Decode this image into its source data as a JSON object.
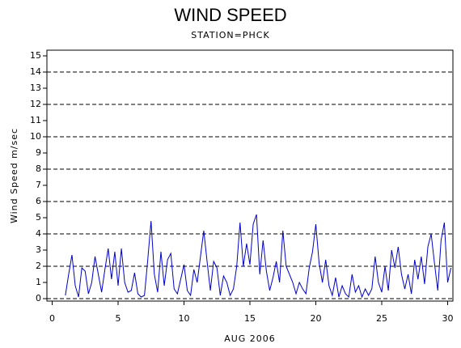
{
  "chart_data": {
    "type": "line",
    "title": "WIND SPEED",
    "subtitle": "STATION=PHCK",
    "x_label": "AUG 2006",
    "y_label": "Wind Speed m/sec",
    "xlim": [
      -0.4,
      30.4
    ],
    "xticks": [
      0,
      5,
      10,
      15,
      20,
      25,
      30
    ],
    "ylim": [
      -0.15,
      15.35
    ],
    "yticks": [
      0,
      1,
      2,
      3,
      4,
      5,
      6,
      7,
      8,
      9,
      10,
      11,
      12,
      13,
      14,
      15
    ],
    "grid_lines": [
      0,
      2,
      4,
      6,
      8,
      10,
      12,
      14
    ],
    "x": [
      1,
      1.25,
      1.5,
      1.75,
      2,
      2.25,
      2.5,
      2.75,
      3,
      3.25,
      3.5,
      3.75,
      4,
      4.25,
      4.5,
      4.75,
      5,
      5.25,
      5.5,
      5.75,
      6,
      6.25,
      6.5,
      6.75,
      7,
      7.25,
      7.5,
      7.75,
      8,
      8.25,
      8.5,
      8.75,
      9,
      9.25,
      9.5,
      9.75,
      10,
      10.25,
      10.5,
      10.75,
      11,
      11.25,
      11.5,
      11.75,
      12,
      12.25,
      12.5,
      12.75,
      13,
      13.25,
      13.5,
      13.75,
      14,
      14.25,
      14.5,
      14.75,
      15,
      15.25,
      15.5,
      15.75,
      16,
      16.25,
      16.5,
      16.75,
      17,
      17.25,
      17.5,
      17.75,
      18,
      18.25,
      18.5,
      18.75,
      19,
      19.25,
      19.5,
      19.75,
      20,
      20.25,
      20.5,
      20.75,
      21,
      21.25,
      21.5,
      21.75,
      22,
      22.25,
      22.5,
      22.75,
      23,
      23.25,
      23.5,
      23.75,
      24,
      24.25,
      24.5,
      24.75,
      25,
      25.25,
      25.5,
      25.75,
      26,
      26.25,
      26.5,
      26.75,
      27,
      27.25,
      27.5,
      27.75,
      28,
      28.25,
      28.5,
      28.75,
      29,
      29.25,
      29.5,
      29.75,
      30,
      30.25
    ],
    "series": [
      {
        "name": "Wind Speed",
        "color": "#0000cc",
        "values": [
          0.2,
          1.5,
          2.7,
          0.8,
          0.1,
          1.9,
          1.7,
          0.3,
          1.0,
          2.6,
          1.5,
          0.4,
          1.8,
          3.1,
          1.2,
          2.9,
          0.8,
          3.1,
          1.0,
          0.4,
          0.5,
          1.6,
          0.3,
          0.1,
          0.2,
          2.4,
          4.8,
          1.5,
          0.4,
          2.9,
          0.8,
          2.4,
          2.8,
          0.6,
          0.3,
          1.2,
          2.1,
          0.5,
          0.2,
          1.8,
          1.0,
          2.6,
          4.2,
          2.3,
          0.5,
          2.3,
          1.9,
          0.2,
          1.4,
          1.0,
          0.2,
          0.6,
          2.0,
          4.7,
          2.0,
          3.4,
          2.1,
          4.6,
          5.2,
          1.5,
          3.6,
          1.7,
          0.5,
          1.3,
          2.3,
          1.0,
          4.2,
          2.0,
          1.5,
          1.0,
          0.3,
          1.0,
          0.6,
          0.3,
          1.9,
          2.9,
          4.6,
          2.2,
          1.0,
          2.4,
          0.8,
          0.2,
          1.3,
          0.1,
          0.8,
          0.3,
          0.1,
          1.5,
          0.4,
          0.8,
          0.1,
          0.6,
          0.2,
          0.6,
          2.6,
          1.0,
          0.4,
          2.0,
          0.5,
          3.0,
          1.9,
          3.2,
          1.5,
          0.6,
          1.5,
          0.3,
          2.4,
          1.2,
          2.6,
          0.9,
          3.2,
          4.0,
          2.2,
          0.5,
          3.6,
          4.7,
          1.0,
          1.9
        ]
      }
    ]
  }
}
